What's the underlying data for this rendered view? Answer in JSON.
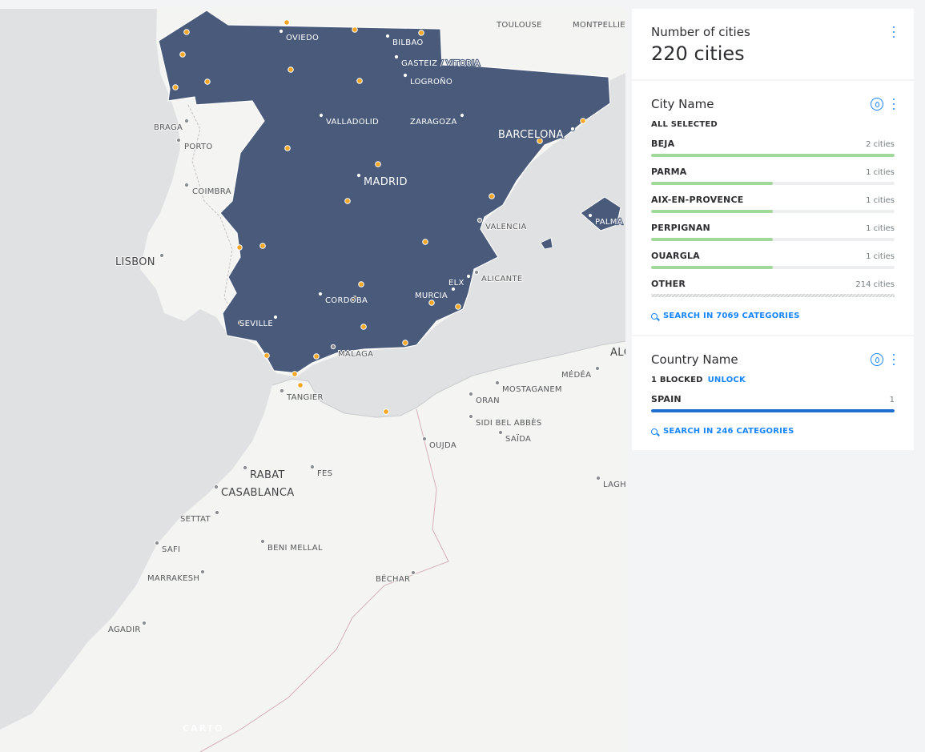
{
  "map": {
    "attribution": "CARTO",
    "labels": [
      {
        "text": "TOULOUSE"
      },
      {
        "text": "MONTPELLIE"
      },
      {
        "text": "OVIEDO"
      },
      {
        "text": "BILBAO"
      },
      {
        "text": "GASTEIZ / VITORIA"
      },
      {
        "text": "LOGROÑO"
      },
      {
        "text": "BRAGA"
      },
      {
        "text": "PORTO"
      },
      {
        "text": "VALLADOLID"
      },
      {
        "text": "ZARAGOZA"
      },
      {
        "text": "BARCELONA"
      },
      {
        "text": "MADRID"
      },
      {
        "text": "COIMBRA"
      },
      {
        "text": "VALENCIA"
      },
      {
        "text": "PALMA"
      },
      {
        "text": "LISBON"
      },
      {
        "text": "ELX"
      },
      {
        "text": "ALICANTE"
      },
      {
        "text": "MURCIA"
      },
      {
        "text": "CORDOBA"
      },
      {
        "text": "SEVILLE"
      },
      {
        "text": "MALAGA"
      },
      {
        "text": "ALG"
      },
      {
        "text": "MÉDÉA"
      },
      {
        "text": "MOSTAGANEM"
      },
      {
        "text": "TANGIER"
      },
      {
        "text": "ORAN"
      },
      {
        "text": "SIDI BEL ABBÈS"
      },
      {
        "text": "SAÏDA"
      },
      {
        "text": "OUJDA"
      },
      {
        "text": "RABAT"
      },
      {
        "text": "FES"
      },
      {
        "text": "CASABLANCA"
      },
      {
        "text": "LAGH"
      },
      {
        "text": "SETTAT"
      },
      {
        "text": "SAFI"
      },
      {
        "text": "BENI MELLAL"
      },
      {
        "text": "MARRAKESH"
      },
      {
        "text": "BÉCHAR"
      },
      {
        "text": "AGADIR"
      }
    ],
    "colors": {
      "water": "#dfe1e3",
      "land": "#f4f4f2",
      "spain": "#495a7b",
      "point": "#f5a623"
    }
  },
  "widgets": {
    "count": {
      "title": "Number of cities",
      "value": "220 cities"
    },
    "city": {
      "title": "City Name",
      "status": "ALL SELECTED",
      "categories": [
        {
          "name": "BEJA",
          "count": "2 cities",
          "fraction": 1.0
        },
        {
          "name": "PARMA",
          "count": "1 cities",
          "fraction": 0.5
        },
        {
          "name": "AIX-EN-PROVENCE",
          "count": "1 cities",
          "fraction": 0.5
        },
        {
          "name": "PERPIGNAN",
          "count": "1 cities",
          "fraction": 0.5
        },
        {
          "name": "OUARGLA",
          "count": "1 cities",
          "fraction": 0.5
        }
      ],
      "other": {
        "name": "OTHER",
        "count": "214 cities"
      },
      "search": "SEARCH IN 7069 CATEGORIES",
      "bar_color": "#a1d99b"
    },
    "country": {
      "title": "Country Name",
      "status": "1 BLOCKED",
      "unlock": "UNLOCK",
      "categories": [
        {
          "name": "SPAIN",
          "count": "1",
          "fraction": 1.0
        }
      ],
      "search": "SEARCH IN 246 CATEGORIES",
      "bar_color": "#1f6fd1"
    }
  }
}
